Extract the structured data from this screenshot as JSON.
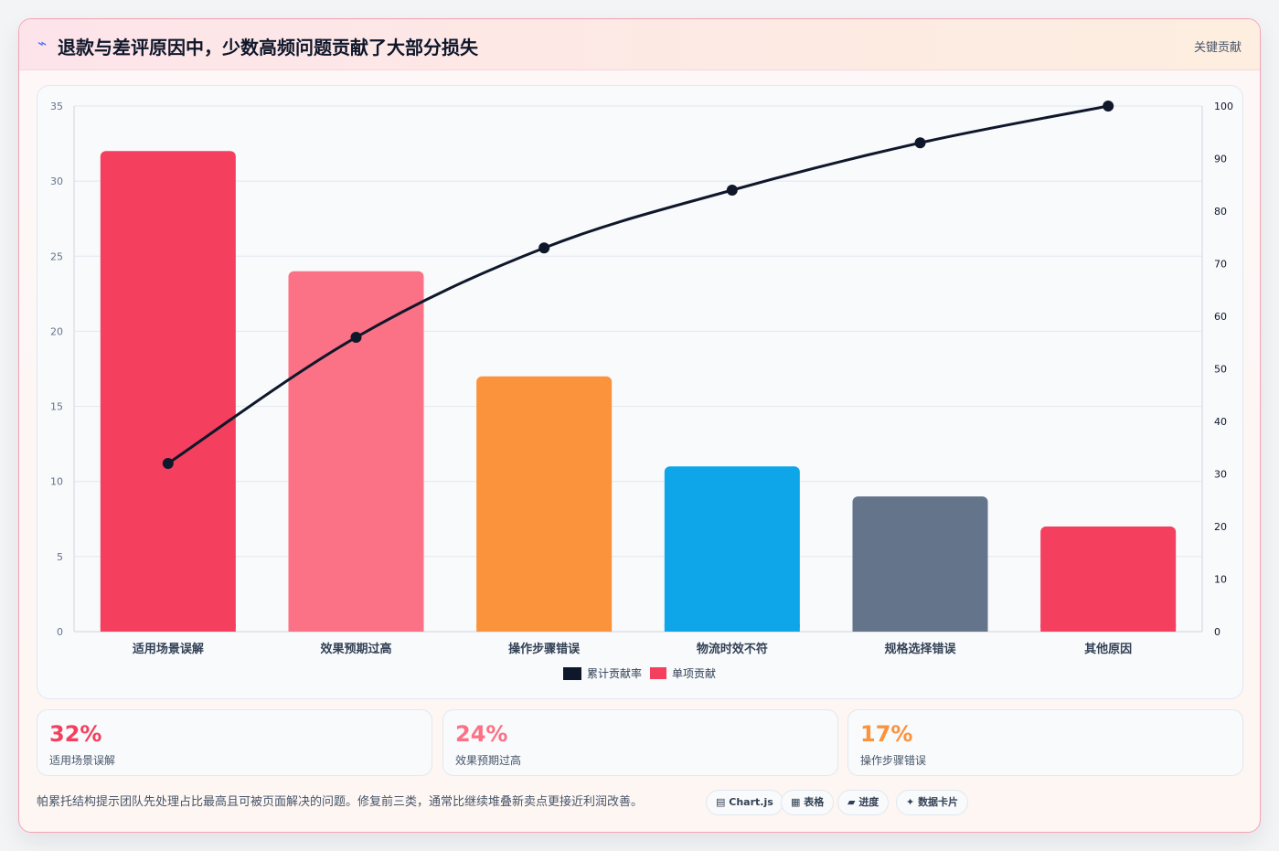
{
  "header": {
    "icon": "bolt-icon",
    "title": "退款与差评原因中，少数高频问题贡献了大部分损失",
    "tag": "关键贡献"
  },
  "chart_data": {
    "type": "bar",
    "categories": [
      "适用场景误解",
      "效果预期过高",
      "操作步骤错误",
      "物流时效不符",
      "规格选择错误",
      "其他原因"
    ],
    "series": [
      {
        "name": "单项贡献",
        "type": "bar",
        "axis": "left",
        "values": [
          32,
          24,
          17,
          11,
          9,
          7
        ],
        "colors": [
          "#f43f5e",
          "#fb7185",
          "#fb923c",
          "#0ea5e9",
          "#64748b",
          "#f43f5e"
        ]
      },
      {
        "name": "累计贡献率",
        "type": "line",
        "axis": "right",
        "values": [
          32,
          56,
          73,
          84,
          93,
          100
        ],
        "color": "#0f172a"
      }
    ],
    "y_left": {
      "min": 0,
      "max": 35,
      "ticks": [
        0,
        5,
        10,
        15,
        20,
        25,
        30,
        35
      ]
    },
    "y_right": {
      "min": 0,
      "max": 100,
      "ticks": [
        0,
        10,
        20,
        30,
        40,
        50,
        60,
        70,
        80,
        90,
        100
      ]
    },
    "legend": {
      "position": "bottom",
      "items": [
        "累计贡献率",
        "单项贡献"
      ]
    },
    "grid": true
  },
  "stats": [
    {
      "value": "32%",
      "label": "适用场景误解",
      "color": "#f43f5e"
    },
    {
      "value": "24%",
      "label": "效果预期过高",
      "color": "#fb7185"
    },
    {
      "value": "17%",
      "label": "操作步骤错误",
      "color": "#fb923c"
    }
  ],
  "footnote": "帕累托结构提示团队先处理占比最高且可被页面解决的问题。修复前三类，通常比继续堆叠新卖点更接近利润改善。",
  "pills": [
    {
      "icon": "▤",
      "label": "Chart.js"
    },
    {
      "icon": "▦",
      "label": "表格"
    },
    {
      "icon": "▰",
      "label": "进度"
    },
    {
      "icon": "✦",
      "label": "数据卡片"
    }
  ]
}
